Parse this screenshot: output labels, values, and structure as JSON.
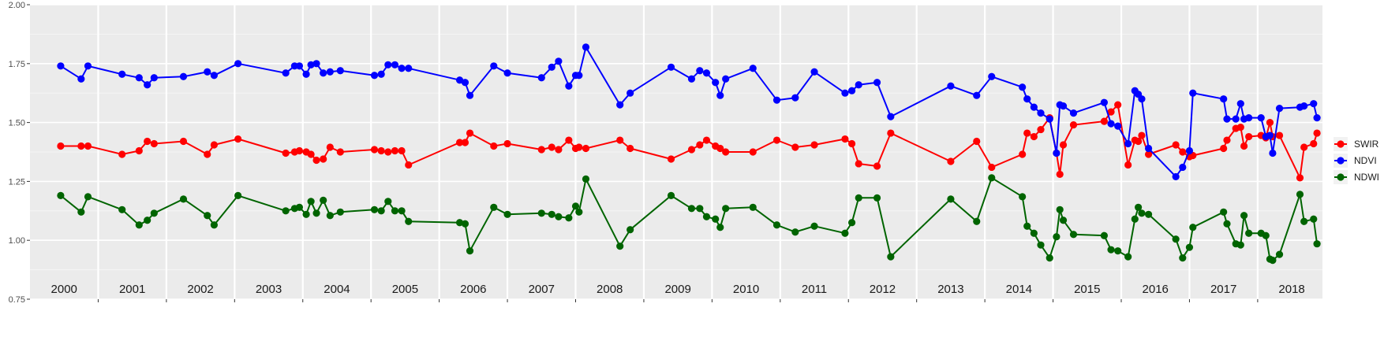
{
  "chart_data": {
    "type": "line",
    "title": "",
    "xlabel": "",
    "ylabel": "",
    "xlim": [
      2000.0,
      2018.95
    ],
    "ylim": [
      0.75,
      2.0
    ],
    "y_ticks": [
      "0.75",
      "1.00",
      "1.25",
      "1.50",
      "1.75",
      "2.00"
    ],
    "y_tick_values": [
      0.75,
      1.0,
      1.25,
      1.5,
      1.75,
      2.0
    ],
    "year_labels": [
      "2000",
      "2001",
      "2002",
      "2003",
      "2004",
      "2005",
      "2006",
      "2007",
      "2008",
      "2009",
      "2010",
      "2011",
      "2012",
      "2013",
      "2014",
      "2015",
      "2016",
      "2017",
      "2018"
    ],
    "grid": true,
    "panel_background": "#ebebeb",
    "legend_position": "right",
    "series": [
      {
        "name": "SWIR",
        "color": "#ff0000",
        "x": [
          2000.45,
          2000.75,
          2000.85,
          2001.35,
          2001.6,
          2001.72,
          2001.82,
          2002.25,
          2002.6,
          2002.7,
          2003.05,
          2003.75,
          2003.88,
          2003.95,
          2004.05,
          2004.12,
          2004.2,
          2004.3,
          2004.4,
          2004.55,
          2005.05,
          2005.15,
          2005.25,
          2005.35,
          2005.45,
          2005.55,
          2006.3,
          2006.38,
          2006.45,
          2006.8,
          2007.0,
          2007.5,
          2007.65,
          2007.75,
          2007.9,
          2008.0,
          2008.05,
          2008.15,
          2008.65,
          2008.8,
          2009.4,
          2009.7,
          2009.82,
          2009.92,
          2010.05,
          2010.12,
          2010.2,
          2010.6,
          2010.95,
          2011.22,
          2011.5,
          2011.95,
          2012.05,
          2012.15,
          2012.42,
          2012.62,
          2013.5,
          2013.88,
          2014.1,
          2014.55,
          2014.62,
          2014.72,
          2014.82,
          2014.95,
          2015.05,
          2015.1,
          2015.15,
          2015.3,
          2015.75,
          2015.85,
          2015.95,
          2016.1,
          2016.2,
          2016.25,
          2016.3,
          2016.4,
          2016.8,
          2016.9,
          2017.0,
          2017.05,
          2017.5,
          2017.55,
          2017.68,
          2017.75,
          2017.8,
          2017.87,
          2018.05,
          2018.12,
          2018.18,
          2018.22,
          2018.32,
          2018.62,
          2018.68,
          2018.82,
          2018.87
        ],
        "values": [
          1.4,
          1.4,
          1.4,
          1.365,
          1.38,
          1.42,
          1.41,
          1.42,
          1.365,
          1.405,
          1.43,
          1.37,
          1.375,
          1.38,
          1.375,
          1.365,
          1.34,
          1.345,
          1.395,
          1.375,
          1.385,
          1.38,
          1.375,
          1.38,
          1.38,
          1.32,
          1.415,
          1.415,
          1.455,
          1.4,
          1.41,
          1.385,
          1.395,
          1.385,
          1.425,
          1.39,
          1.395,
          1.39,
          1.425,
          1.39,
          1.345,
          1.385,
          1.405,
          1.425,
          1.4,
          1.39,
          1.375,
          1.375,
          1.425,
          1.395,
          1.405,
          1.43,
          1.41,
          1.325,
          1.315,
          1.455,
          1.335,
          1.42,
          1.31,
          1.365,
          1.455,
          1.44,
          1.47,
          1.52,
          1.37,
          1.28,
          1.405,
          1.49,
          1.505,
          1.545,
          1.575,
          1.32,
          1.425,
          1.42,
          1.445,
          1.365,
          1.405,
          1.375,
          1.355,
          1.36,
          1.39,
          1.425,
          1.475,
          1.48,
          1.4,
          1.44,
          1.445,
          1.435,
          1.5,
          1.44,
          1.445,
          1.265,
          1.395,
          1.41,
          1.455
        ]
      },
      {
        "name": "NDVI",
        "color": "#0000ff",
        "x": [
          2000.45,
          2000.75,
          2000.85,
          2001.35,
          2001.6,
          2001.72,
          2001.82,
          2002.25,
          2002.6,
          2002.7,
          2003.05,
          2003.75,
          2003.88,
          2003.95,
          2004.05,
          2004.12,
          2004.2,
          2004.3,
          2004.4,
          2004.55,
          2005.05,
          2005.15,
          2005.25,
          2005.35,
          2005.45,
          2005.55,
          2006.3,
          2006.38,
          2006.45,
          2006.8,
          2007.0,
          2007.5,
          2007.65,
          2007.75,
          2007.9,
          2008.0,
          2008.05,
          2008.15,
          2008.65,
          2008.8,
          2009.4,
          2009.7,
          2009.82,
          2009.92,
          2010.05,
          2010.12,
          2010.2,
          2010.6,
          2010.95,
          2011.22,
          2011.5,
          2011.95,
          2012.05,
          2012.15,
          2012.42,
          2012.62,
          2013.5,
          2013.88,
          2014.1,
          2014.55,
          2014.62,
          2014.72,
          2014.82,
          2014.95,
          2015.05,
          2015.1,
          2015.15,
          2015.3,
          2015.75,
          2015.85,
          2015.95,
          2016.1,
          2016.2,
          2016.25,
          2016.3,
          2016.4,
          2016.8,
          2016.9,
          2017.0,
          2017.05,
          2017.5,
          2017.55,
          2017.68,
          2017.75,
          2017.8,
          2017.87,
          2018.05,
          2018.12,
          2018.18,
          2018.22,
          2018.32,
          2018.62,
          2018.68,
          2018.82,
          2018.87
        ],
        "values": [
          1.74,
          1.685,
          1.74,
          1.705,
          1.69,
          1.66,
          1.69,
          1.695,
          1.715,
          1.7,
          1.75,
          1.71,
          1.74,
          1.74,
          1.705,
          1.745,
          1.75,
          1.71,
          1.715,
          1.72,
          1.7,
          1.705,
          1.745,
          1.745,
          1.73,
          1.73,
          1.68,
          1.67,
          1.615,
          1.74,
          1.71,
          1.69,
          1.735,
          1.76,
          1.655,
          1.7,
          1.7,
          1.82,
          1.575,
          1.625,
          1.735,
          1.685,
          1.72,
          1.71,
          1.67,
          1.615,
          1.685,
          1.73,
          1.595,
          1.605,
          1.715,
          1.625,
          1.635,
          1.66,
          1.67,
          1.525,
          1.655,
          1.615,
          1.695,
          1.65,
          1.6,
          1.565,
          1.54,
          1.515,
          1.37,
          1.575,
          1.57,
          1.54,
          1.585,
          1.495,
          1.485,
          1.41,
          1.635,
          1.62,
          1.6,
          1.39,
          1.27,
          1.31,
          1.38,
          1.625,
          1.6,
          1.515,
          1.515,
          1.58,
          1.515,
          1.52,
          1.52,
          1.44,
          1.445,
          1.37,
          1.56,
          1.565,
          1.57,
          1.58,
          1.52
        ]
      },
      {
        "name": "NDWI",
        "color": "#006400",
        "x": [
          2000.45,
          2000.75,
          2000.85,
          2001.35,
          2001.6,
          2001.72,
          2001.82,
          2002.25,
          2002.6,
          2002.7,
          2003.05,
          2003.75,
          2003.88,
          2003.95,
          2004.05,
          2004.12,
          2004.2,
          2004.3,
          2004.4,
          2004.55,
          2005.05,
          2005.15,
          2005.25,
          2005.35,
          2005.45,
          2005.55,
          2006.3,
          2006.38,
          2006.45,
          2006.8,
          2007.0,
          2007.5,
          2007.65,
          2007.75,
          2007.9,
          2008.0,
          2008.05,
          2008.15,
          2008.65,
          2008.8,
          2009.4,
          2009.7,
          2009.82,
          2009.92,
          2010.05,
          2010.12,
          2010.2,
          2010.6,
          2010.95,
          2011.22,
          2011.5,
          2011.95,
          2012.05,
          2012.15,
          2012.42,
          2012.62,
          2013.5,
          2013.88,
          2014.1,
          2014.55,
          2014.62,
          2014.72,
          2014.82,
          2014.95,
          2015.05,
          2015.1,
          2015.15,
          2015.3,
          2015.75,
          2015.85,
          2015.95,
          2016.1,
          2016.2,
          2016.25,
          2016.3,
          2016.4,
          2016.8,
          2016.9,
          2017.0,
          2017.05,
          2017.5,
          2017.55,
          2017.68,
          2017.75,
          2017.8,
          2017.87,
          2018.05,
          2018.12,
          2018.18,
          2018.22,
          2018.32,
          2018.62,
          2018.68,
          2018.82,
          2018.87
        ],
        "values": [
          1.19,
          1.12,
          1.185,
          1.13,
          1.065,
          1.085,
          1.115,
          1.175,
          1.105,
          1.065,
          1.19,
          1.125,
          1.135,
          1.14,
          1.11,
          1.165,
          1.115,
          1.17,
          1.105,
          1.12,
          1.13,
          1.125,
          1.165,
          1.125,
          1.125,
          1.08,
          1.075,
          1.07,
          0.955,
          1.14,
          1.11,
          1.115,
          1.11,
          1.1,
          1.095,
          1.145,
          1.12,
          1.26,
          0.975,
          1.045,
          1.19,
          1.135,
          1.135,
          1.1,
          1.09,
          1.055,
          1.135,
          1.14,
          1.065,
          1.035,
          1.06,
          1.03,
          1.075,
          1.18,
          1.18,
          0.93,
          1.175,
          1.08,
          1.265,
          1.185,
          1.06,
          1.03,
          0.98,
          0.925,
          1.015,
          1.13,
          1.085,
          1.025,
          1.02,
          0.96,
          0.955,
          0.93,
          1.09,
          1.14,
          1.115,
          1.11,
          1.005,
          0.925,
          0.97,
          1.055,
          1.12,
          1.07,
          0.985,
          0.98,
          1.105,
          1.03,
          1.03,
          1.02,
          0.92,
          0.915,
          0.94,
          1.195,
          1.08,
          1.09,
          0.985
        ]
      }
    ]
  }
}
